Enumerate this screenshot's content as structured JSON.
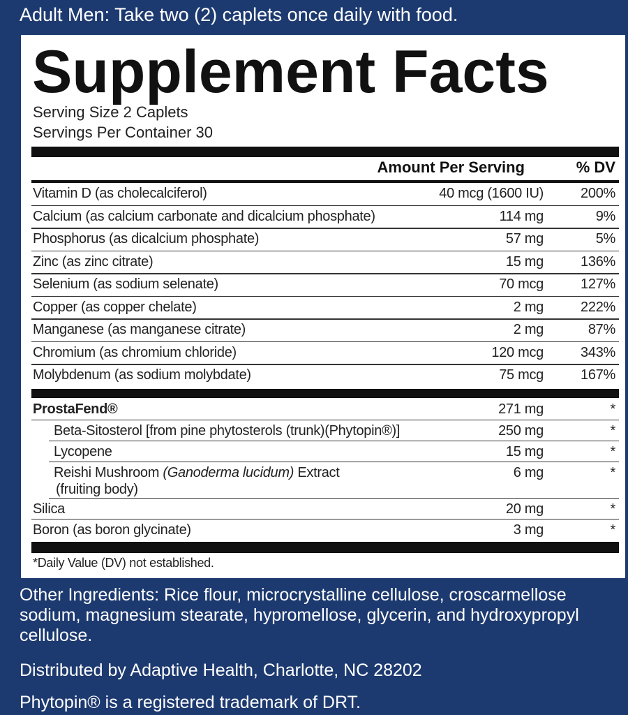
{
  "directions": "Adult Men: Take two (2) caplets once daily with food.",
  "facts": {
    "title": "Supplement Facts",
    "serving_size": "Serving Size 2 Caplets",
    "servings_per_container": "Servings Per Container 30",
    "header": {
      "amount": "Amount Per Serving",
      "dv": "% DV"
    },
    "nutrients": [
      {
        "name": "Vitamin D (as cholecalciferol)",
        "amount": "40 mcg (1600 IU)",
        "dv": "200%"
      },
      {
        "name": "Calcium (as calcium carbonate and dicalcium phosphate)",
        "amount": "114 mg",
        "dv": "9%"
      },
      {
        "name": "Phosphorus (as dicalcium phosphate)",
        "amount": "57 mg",
        "dv": "5%"
      },
      {
        "name": "Zinc (as zinc citrate)",
        "amount": "15 mg",
        "dv": "136%"
      },
      {
        "name": "Selenium (as sodium selenate)",
        "amount": "70 mcg",
        "dv": "127%"
      },
      {
        "name": "Copper (as copper chelate)",
        "amount": "2 mg",
        "dv": "222%"
      },
      {
        "name": "Manganese (as manganese citrate)",
        "amount": "2 mg",
        "dv": "87%"
      },
      {
        "name": "Chromium (as chromium chloride)",
        "amount": "120 mcg",
        "dv": "343%"
      },
      {
        "name": "Molybdenum (as sodium molybdate)",
        "amount": "75 mcg",
        "dv": "167%"
      }
    ],
    "blend": {
      "name": "ProstaFend®",
      "amount": "271 mg",
      "dv": "*",
      "components": [
        {
          "name": "Beta-Sitosterol [from pine phytosterols (trunk)(Phytopin®)]",
          "amount": "250 mg",
          "dv": "*"
        },
        {
          "name": "Lycopene",
          "amount": "15 mg",
          "dv": "*"
        },
        {
          "name_parts": [
            "Reishi Mushroom",
            "(Ganoderma lucidum)",
            "Extract",
            "(fruiting body)"
          ],
          "amount": "6 mg",
          "dv": "*"
        }
      ]
    },
    "others": [
      {
        "name": "Silica",
        "amount": "20 mg",
        "dv": "*"
      },
      {
        "name": "Boron (as boron glycinate)",
        "amount": "3 mg",
        "dv": "*"
      }
    ],
    "footnote": "*Daily Value (DV) not established."
  },
  "other_ingredients": "Other Ingredients: Rice flour, microcrystalline cellulose, croscarmellose sodium, magnesium stearate, hypromellose, glycerin, and hydroxypropyl cellulose.",
  "distributed_by": "Distributed by Adaptive Health, Charlotte, NC 28202",
  "trademark": "Phytopin® is a registered trademark of DRT."
}
